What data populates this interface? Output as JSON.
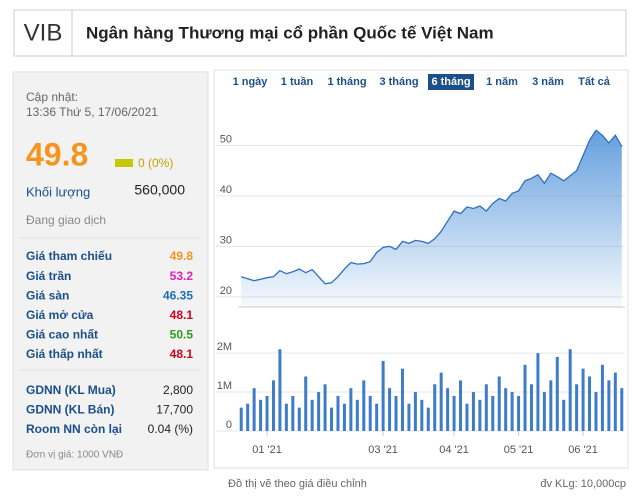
{
  "header": {
    "symbol": "VIB",
    "title": "Ngân hàng Thương mại cổ phần Quốc tế Việt Nam"
  },
  "quote": {
    "updated_label": "Cập nhật:",
    "updated_time": "13:36 Thứ 5, 17/06/2021",
    "price": "49.8",
    "change": "0 (0%)",
    "volume_label": "Khối lượng",
    "volume": "560,000",
    "status": "Đang giao dịch",
    "rows": [
      {
        "label": "Giá tham chiếu",
        "value": "49.8",
        "color": "#f7941d"
      },
      {
        "label": "Giá trần",
        "value": "53.2",
        "color": "#e020c0"
      },
      {
        "label": "Giá sàn",
        "value": "46.35",
        "color": "#1f6fb5"
      },
      {
        "label": "Giá mở cửa",
        "value": "48.1",
        "color": "#d0021b"
      },
      {
        "label": "Giá cao nhất",
        "value": "50.5",
        "color": "#2a9d1f"
      },
      {
        "label": "Giá thấp nhất",
        "value": "48.1",
        "color": "#d0021b"
      }
    ],
    "foreign": [
      {
        "label": "GDNN (KL Mua)",
        "value": "2,800"
      },
      {
        "label": "GDNN (KL Bán)",
        "value": "17,700"
      },
      {
        "label": "Room NN còn lại",
        "value": "0.04 (%)"
      }
    ],
    "unit": "Đơn vị giá: 1000 VNĐ"
  },
  "tabs": {
    "items": [
      "1 ngày",
      "1 tuần",
      "1 tháng",
      "3 tháng",
      "6 tháng",
      "1 năm",
      "3 năm",
      "Tất cả"
    ],
    "active": 4
  },
  "chart_data": [
    {
      "type": "area",
      "color": "#4a8fd8",
      "values": [
        24,
        23.6,
        23.2,
        23.5,
        23.8,
        24,
        25.2,
        24.6,
        25,
        25.5,
        24.8,
        25.4,
        24,
        22.6,
        22.8,
        24,
        25.5,
        26.8,
        26.5,
        26.6,
        27,
        28.8,
        29.8,
        30,
        29.4,
        31,
        30.6,
        31.2,
        31,
        30.6,
        31.5,
        33,
        35,
        37,
        36.5,
        37.8,
        37.5,
        38,
        37,
        38.5,
        39.5,
        39,
        40.5,
        41,
        43,
        43.5,
        44.2,
        42.5,
        44.5,
        43.8,
        43,
        44,
        45,
        48,
        51,
        53,
        52,
        50.5,
        52,
        49.8
      ],
      "ylim": [
        18,
        59
      ],
      "yticks": [
        20,
        30,
        40,
        50
      ],
      "grid": true
    },
    {
      "type": "bar",
      "color": "#3d7cc9",
      "categories": [
        null,
        null,
        null,
        null,
        "01 '21",
        null,
        null,
        null,
        null,
        null,
        null,
        null,
        null,
        null,
        null,
        null,
        null,
        null,
        null,
        null,
        null,
        null,
        "03 '21",
        null,
        null,
        null,
        null,
        null,
        null,
        null,
        null,
        null,
        null,
        "04 '21",
        null,
        null,
        null,
        null,
        null,
        null,
        null,
        null,
        null,
        "05 '21",
        null,
        null,
        null,
        null,
        null,
        null,
        null,
        null,
        null,
        "06 '21",
        null,
        null,
        null,
        null,
        null,
        null
      ],
      "values": [
        600000,
        700000,
        1100000,
        800000,
        900000,
        1300000,
        2100000,
        700000,
        900000,
        600000,
        1400000,
        800000,
        1000000,
        1200000,
        600000,
        900000,
        700000,
        1100000,
        800000,
        1300000,
        900000,
        700000,
        1800000,
        1100000,
        900000,
        1600000,
        700000,
        1000000,
        800000,
        600000,
        1200000,
        1500000,
        1100000,
        900000,
        1300000,
        700000,
        1000000,
        800000,
        1200000,
        900000,
        1400000,
        1100000,
        1000000,
        900000,
        1700000,
        1200000,
        2000000,
        1000000,
        1300000,
        1900000,
        800000,
        2100000,
        1200000,
        1600000,
        1400000,
        1000000,
        1700000,
        1300000,
        1500000,
        1100000
      ],
      "ylim": [
        0,
        2850000
      ],
      "yticks": [
        0,
        {
          "value": 1000000,
          "label": "1M"
        },
        {
          "value": 2000000,
          "label": "2M"
        }
      ],
      "grid": true
    }
  ],
  "chart_notes": {
    "adjusted": "Đồ thị vẽ theo giá điều chỉnh",
    "volume_unit": "đv KLg: 10,000cp"
  }
}
